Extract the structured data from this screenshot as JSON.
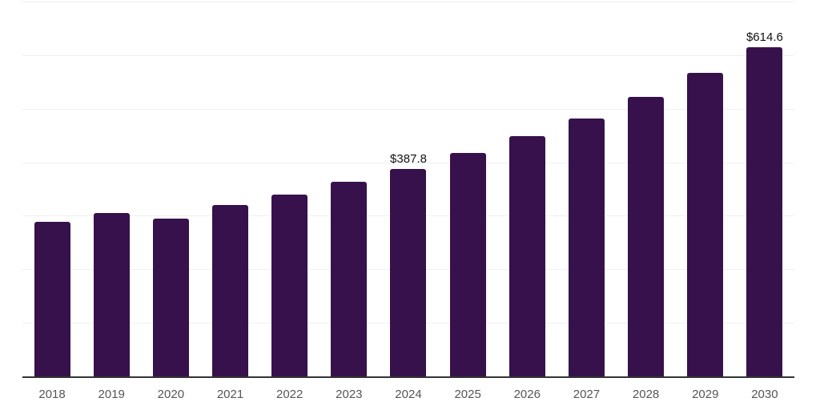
{
  "chart_data": {
    "type": "bar",
    "title": "",
    "xlabel": "",
    "ylabel": "",
    "categories": [
      "2018",
      "2019",
      "2020",
      "2021",
      "2022",
      "2023",
      "2024",
      "2025",
      "2026",
      "2027",
      "2028",
      "2029",
      "2030"
    ],
    "values": [
      289,
      305.5,
      295,
      320.5,
      339.5,
      363,
      387.8,
      417.5,
      448.5,
      481.5,
      522,
      567,
      614.6
    ],
    "data_labels": [
      null,
      null,
      null,
      null,
      null,
      null,
      "$387.8",
      null,
      null,
      null,
      null,
      null,
      "$614.6"
    ],
    "ylim": [
      0,
      700
    ],
    "grid_step": 100,
    "grid": "horizontal gridlines only, no y-axis tick labels",
    "legend": "none",
    "colors": {
      "bar": "#36114B",
      "axis_line": "#333333",
      "gridline": "#f0f0f0",
      "tick_label": "#555555",
      "data_label": "#111111",
      "background": "#ffffff"
    }
  }
}
